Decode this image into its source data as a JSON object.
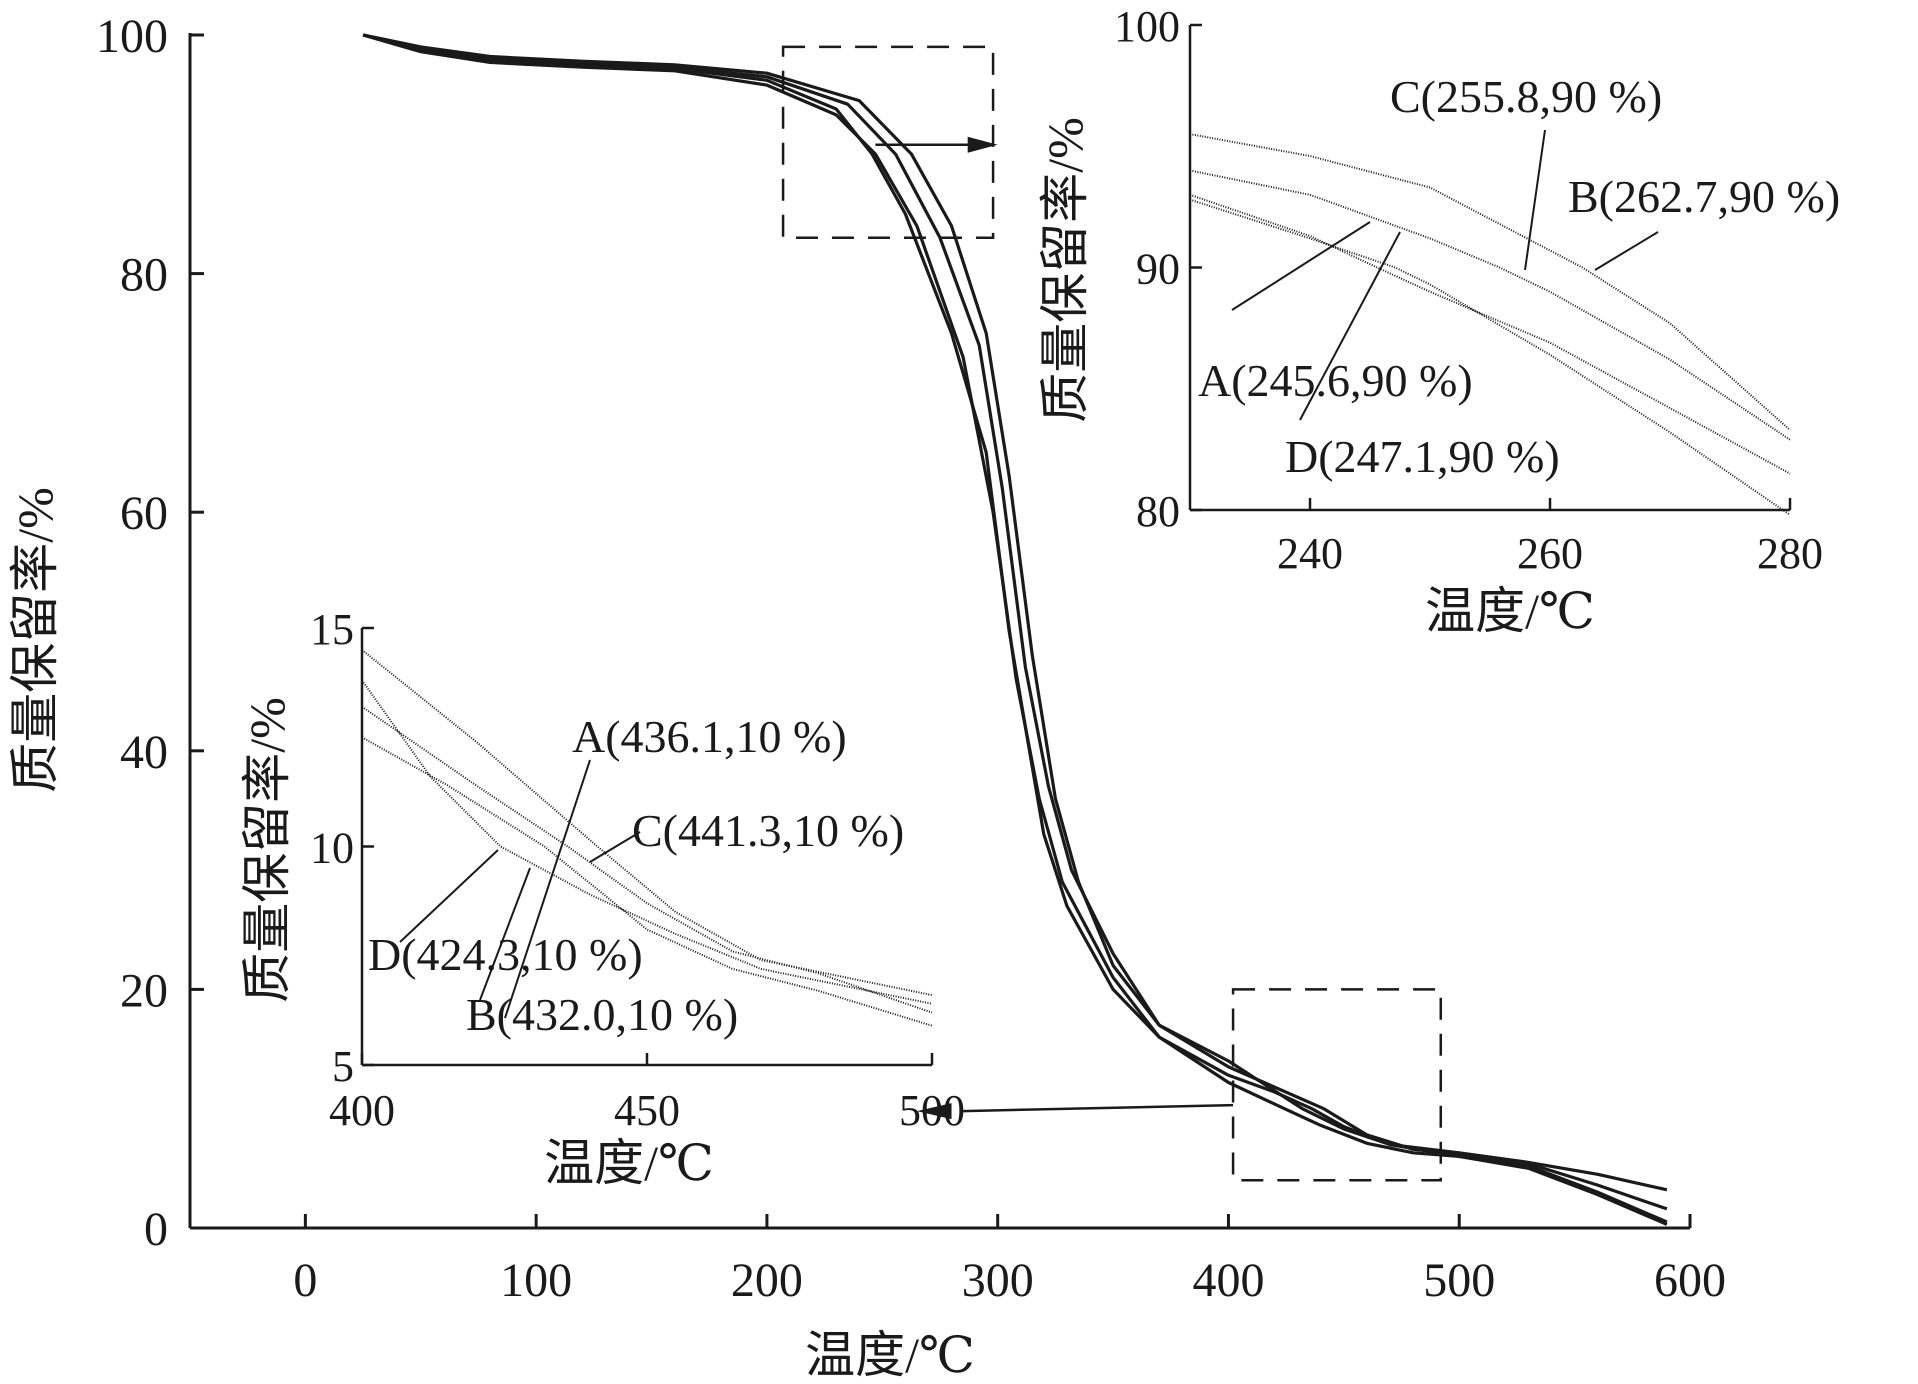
{
  "chart_data": [
    {
      "type": "line",
      "title": "",
      "xlabel": "温度/℃",
      "ylabel": "质量保留率/%",
      "xlim": [
        -50,
        600
      ],
      "ylim": [
        0,
        100
      ],
      "xticks": [
        "0",
        "100",
        "200",
        "300",
        "400",
        "500",
        "600"
      ],
      "yticks": [
        "0",
        "20",
        "40",
        "60",
        "80",
        "100"
      ],
      "grid": false,
      "series": [
        {
          "name": "A",
          "x": [
            25,
            50,
            80,
            120,
            160,
            200,
            230,
            245.6,
            260,
            280,
            295,
            305,
            312,
            320,
            330,
            350,
            370,
            400,
            420,
            436.1,
            450,
            470,
            500,
            530,
            560,
            590
          ],
          "y": [
            100,
            98.7,
            97.8,
            97.5,
            97.2,
            96.2,
            93.8,
            90,
            85,
            75,
            65,
            50,
            42,
            33,
            27,
            20,
            16,
            12.8,
            11.4,
            10,
            8.5,
            7,
            6,
            5.2,
            3.0,
            0.5
          ]
        },
        {
          "name": "B",
          "x": [
            25,
            50,
            80,
            120,
            160,
            200,
            240,
            262.7,
            280,
            295,
            305,
            315,
            325,
            335,
            350,
            370,
            400,
            432,
            450,
            470,
            500,
            530,
            560,
            590
          ],
          "y": [
            100,
            99,
            98.2,
            97.8,
            97.5,
            96.8,
            94.5,
            90,
            84,
            75,
            63,
            48,
            36,
            29,
            22,
            17,
            14,
            10,
            8.3,
            7,
            6.3,
            5.5,
            4.5,
            3.2
          ]
        },
        {
          "name": "C",
          "x": [
            25,
            50,
            80,
            120,
            160,
            200,
            235,
            255.8,
            275,
            292,
            302,
            312,
            322,
            332,
            350,
            370,
            400,
            441.3,
            460,
            480,
            500,
            530,
            560,
            590
          ],
          "y": [
            100,
            98.8,
            98,
            97.6,
            97.3,
            96.5,
            94.2,
            90,
            83,
            74,
            62,
            47,
            37,
            30,
            23,
            17,
            13.5,
            10,
            7.8,
            6.6,
            6.2,
            5.4,
            3.6,
            1.6
          ]
        },
        {
          "name": "D",
          "x": [
            25,
            50,
            80,
            120,
            160,
            200,
            230,
            247.1,
            265,
            285,
            298,
            308,
            318,
            328,
            350,
            370,
            400,
            424.3,
            440,
            460,
            480,
            500,
            530,
            560,
            590
          ],
          "y": [
            100,
            98.6,
            97.7,
            97.3,
            97,
            95.8,
            93.3,
            90,
            84,
            73,
            60,
            46,
            36,
            29,
            21,
            16,
            12.2,
            10,
            8.6,
            7.1,
            6.3,
            6.0,
            5.0,
            2.8,
            0.3
          ]
        }
      ]
    },
    {
      "type": "line",
      "title": "",
      "xlabel": "温度/℃",
      "ylabel": "质量保留率/%",
      "xlim": [
        230,
        280
      ],
      "ylim": [
        80,
        100
      ],
      "xticks": [
        "240",
        "260",
        "280"
      ],
      "yticks": [
        "80",
        "90",
        "100"
      ],
      "annotations": [
        "C(255.8,90 %)",
        "B(262.7,90 %)",
        "A(245.6,90 %)",
        "D(247.1,90 %)"
      ],
      "series": [
        {
          "name": "A",
          "x": [
            230,
            240,
            245.6,
            250,
            260,
            270,
            280
          ],
          "y": [
            93,
            91.3,
            90,
            89,
            86.9,
            84.2,
            81.5
          ]
        },
        {
          "name": "B",
          "x": [
            230,
            240,
            250,
            262.7,
            270,
            280
          ],
          "y": [
            95.5,
            94.6,
            93.3,
            90,
            87.7,
            83.3
          ]
        },
        {
          "name": "C",
          "x": [
            230,
            240,
            250,
            255.8,
            260,
            270,
            280
          ],
          "y": [
            94,
            93,
            91.2,
            90,
            89,
            86.2,
            82.9
          ]
        },
        {
          "name": "D",
          "x": [
            230,
            240,
            247.1,
            250,
            260,
            270,
            280
          ],
          "y": [
            92.8,
            91.2,
            90,
            89.3,
            86.4,
            83.2,
            79.8
          ]
        }
      ]
    },
    {
      "type": "line",
      "title": "",
      "xlabel": "温度/℃",
      "ylabel": "质量保留率/%",
      "xlim": [
        400,
        500
      ],
      "ylim": [
        5,
        15
      ],
      "xticks": [
        "400",
        "450",
        "500"
      ],
      "yticks": [
        "5",
        "10",
        "15"
      ],
      "annotations": [
        "A(436.1,10 %)",
        "C(441.3,10 %)",
        "D(424.3,10 %)",
        "B(432.0,10 %)"
      ],
      "series": [
        {
          "name": "A",
          "x": [
            400,
            420,
            436.1,
            450,
            465,
            480,
            500
          ],
          "y": [
            13.2,
            11.4,
            10,
            8.7,
            7.6,
            7.1,
            6.2
          ]
        },
        {
          "name": "B",
          "x": [
            400,
            415,
            432,
            450,
            465,
            480,
            500
          ],
          "y": [
            12.5,
            11.4,
            10,
            8.1,
            7.2,
            6.7,
            5.9
          ]
        },
        {
          "name": "C",
          "x": [
            400,
            420,
            441.3,
            455,
            470,
            485,
            500
          ],
          "y": [
            14.5,
            12.4,
            10,
            8.5,
            7.4,
            7.0,
            6.6
          ]
        },
        {
          "name": "D",
          "x": [
            400,
            412,
            424.3,
            440,
            455,
            470,
            485,
            500
          ],
          "y": [
            13.8,
            11.6,
            10,
            8.9,
            8.0,
            7.2,
            6.8,
            6.4
          ]
        }
      ]
    }
  ]
}
